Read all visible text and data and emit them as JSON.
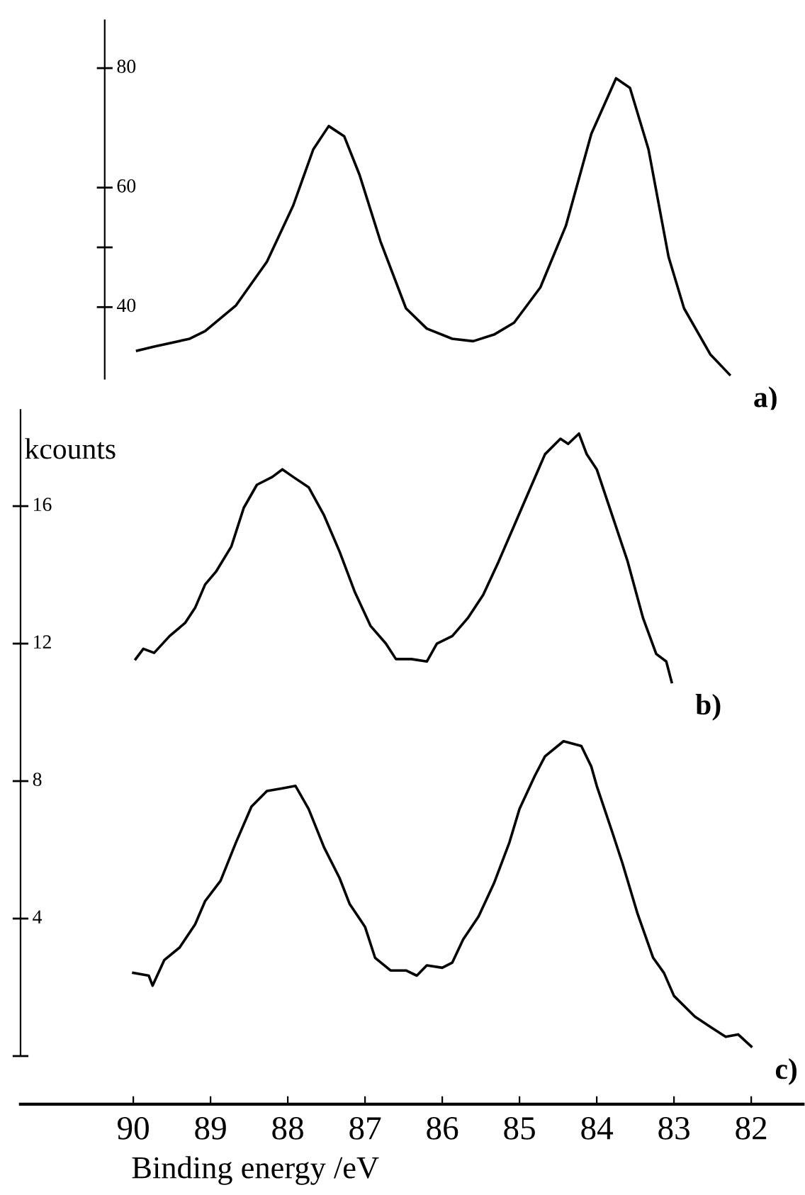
{
  "chart_data": [
    {
      "type": "line",
      "tick_labels": "y",
      "xlim": [
        90.37,
        82
      ],
      "xticks": [
        90,
        89,
        88,
        87,
        86,
        85,
        84,
        83,
        82
      ],
      "ylim": [
        28,
        88
      ],
      "yticks": [
        80,
        60,
        {
          "value": 50,
          "label": null
        },
        40
      ],
      "legend": false,
      "grid": false,
      "marker": "none",
      "line_style": "solid",
      "series": [
        {
          "name": "a)",
          "color": "#000000",
          "x": [
            89.95,
            89.73,
            89.27,
            89.07,
            88.67,
            88.27,
            87.93,
            87.67,
            87.47,
            87.27,
            87.07,
            86.8,
            86.47,
            86.2,
            85.87,
            85.6,
            85.33,
            85.07,
            84.73,
            84.4,
            84.07,
            83.75,
            83.57,
            83.33,
            83.07,
            82.87,
            82.53,
            82.28
          ],
          "values": [
            32.7,
            33.4,
            34.7,
            36.0,
            40.3,
            47.6,
            57.0,
            66.4,
            70.3,
            68.6,
            62.1,
            51.0,
            39.8,
            36.4,
            34.7,
            34.3,
            35.4,
            37.4,
            43.3,
            53.6,
            69.0,
            78.3,
            76.7,
            66.4,
            48.4,
            39.8,
            32.1,
            28.7
          ]
        }
      ]
    },
    {
      "type": "line",
      "ylabel": "kcounts",
      "xlabel": "Binding energy /eV",
      "xlim": [
        91.46,
        81.33
      ],
      "ylim": [
        -1.4,
        18.8
      ],
      "xticks": [
        90,
        89,
        88,
        87,
        86,
        85,
        84,
        83,
        82
      ],
      "yticks": [
        16,
        12,
        8,
        4,
        {
          "value": 0,
          "label": null
        }
      ],
      "legend": false,
      "grid": false,
      "marker": "none",
      "line_style": "solid",
      "series": [
        {
          "name": "b)",
          "color": "#000000",
          "x": [
            89.97,
            89.87,
            89.73,
            89.53,
            89.33,
            89.2,
            89.07,
            88.93,
            88.73,
            88.57,
            88.4,
            88.2,
            88.07,
            87.93,
            87.73,
            87.53,
            87.33,
            87.13,
            86.93,
            86.73,
            86.6,
            86.4,
            86.2,
            86.07,
            85.87,
            85.67,
            85.47,
            85.27,
            85.07,
            84.87,
            84.67,
            84.47,
            84.37,
            84.23,
            84.13,
            84.0,
            83.8,
            83.6,
            83.4,
            83.23,
            83.1,
            83.03
          ],
          "values": [
            11.55,
            11.85,
            11.73,
            12.22,
            12.6,
            13.04,
            13.72,
            14.09,
            14.83,
            15.95,
            16.62,
            16.85,
            17.07,
            16.85,
            16.55,
            15.73,
            14.68,
            13.49,
            12.52,
            12.0,
            11.55,
            11.55,
            11.48,
            12.0,
            12.22,
            12.74,
            13.42,
            14.39,
            15.43,
            16.47,
            17.51,
            17.96,
            17.81,
            18.11,
            17.51,
            17.07,
            15.73,
            14.39,
            12.74,
            11.7,
            11.48,
            10.88
          ]
        },
        {
          "name": "c)",
          "color": "#000000",
          "x": [
            90.0,
            89.8,
            89.75,
            89.6,
            89.4,
            89.2,
            89.07,
            88.87,
            88.67,
            88.47,
            88.27,
            88.07,
            87.9,
            87.73,
            87.53,
            87.33,
            87.2,
            87.0,
            86.87,
            86.67,
            86.47,
            86.33,
            86.2,
            86.0,
            85.87,
            85.73,
            85.53,
            85.33,
            85.13,
            85.0,
            84.8,
            84.67,
            84.43,
            84.2,
            84.07,
            84.0,
            83.8,
            83.67,
            83.47,
            83.27,
            83.13,
            83.0,
            82.73,
            82.53,
            82.33,
            82.17,
            82.0
          ],
          "values": [
            2.42,
            2.34,
            2.05,
            2.79,
            3.16,
            3.83,
            4.51,
            5.1,
            6.22,
            7.26,
            7.71,
            7.79,
            7.86,
            7.19,
            6.07,
            5.18,
            4.43,
            3.76,
            2.86,
            2.49,
            2.49,
            2.34,
            2.64,
            2.57,
            2.72,
            3.39,
            4.06,
            5.03,
            6.22,
            7.19,
            8.16,
            8.72,
            9.16,
            9.02,
            8.42,
            7.86,
            6.52,
            5.63,
            4.13,
            2.86,
            2.42,
            1.75,
            1.15,
            0.85,
            0.56,
            0.63,
            0.28
          ]
        }
      ]
    }
  ]
}
